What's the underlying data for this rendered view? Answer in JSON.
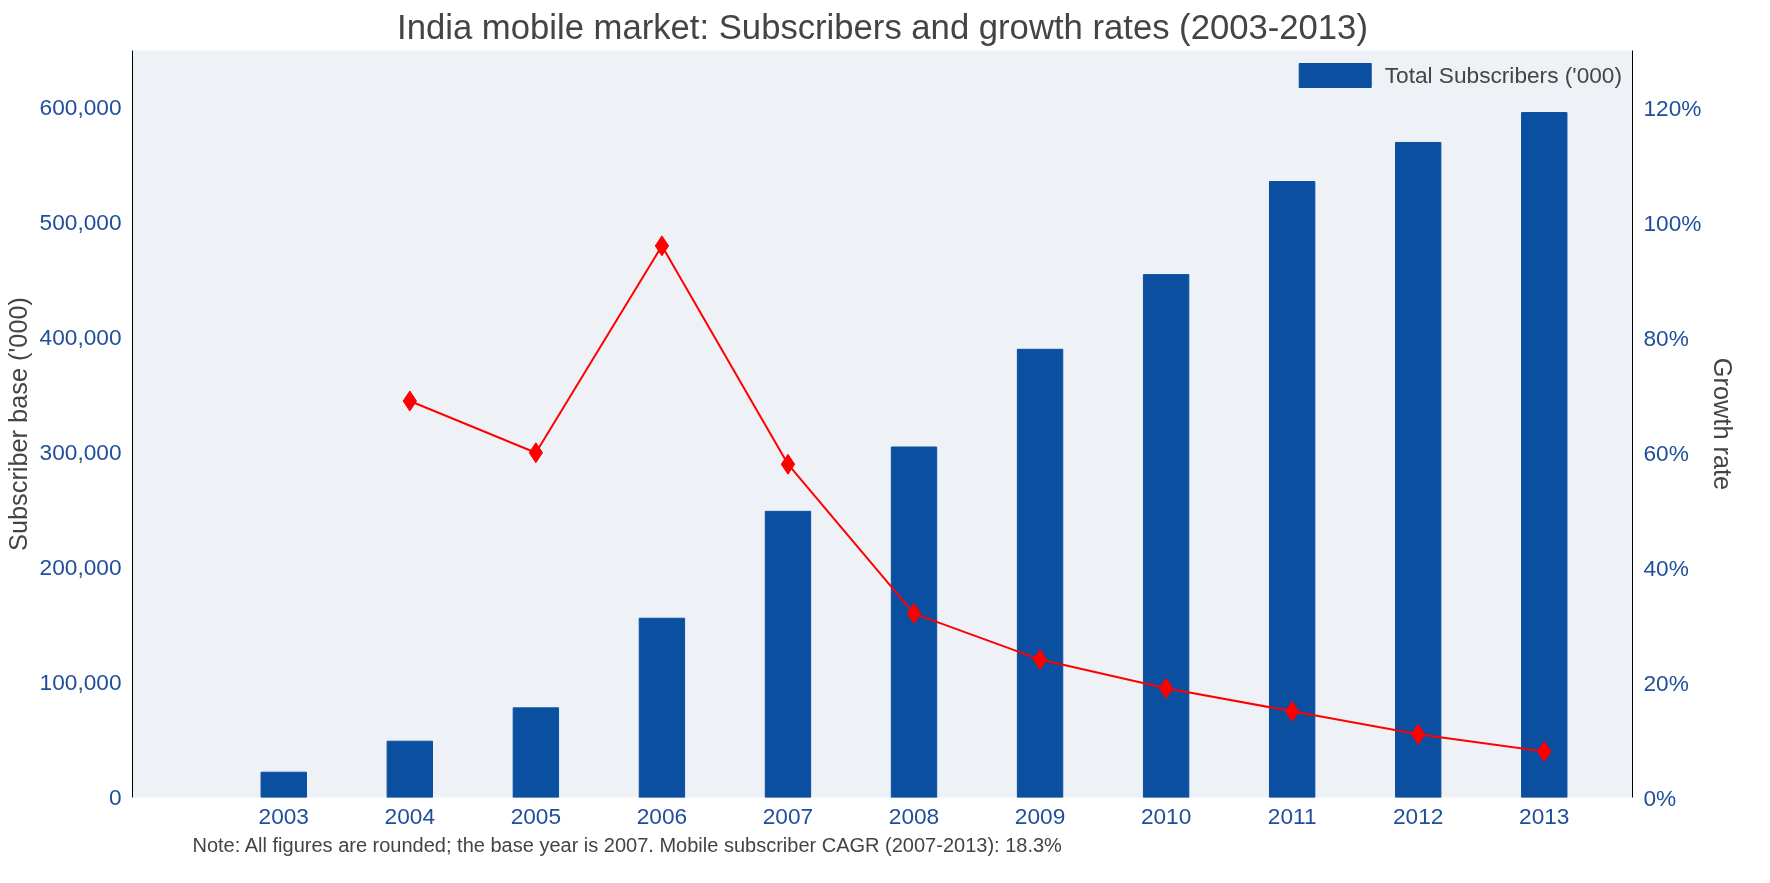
{
  "chart_data": {
    "type": "bar",
    "title": "India mobile market: Subscribers and growth rates (2003-2013)",
    "ylabel": "Subscriber base ('000)",
    "y2label": "Growth rate",
    "categories": [
      "2003",
      "2004",
      "2005",
      "2006",
      "2007",
      "2008",
      "2009",
      "2010",
      "2011",
      "2012",
      "2013"
    ],
    "series": [
      {
        "name": "Total Subscribers ('000)",
        "color": "#0a4fa0",
        "values": [
          22000,
          49000,
          78000,
          156000,
          249000,
          305000,
          390000,
          455000,
          536000,
          570000,
          596000
        ]
      },
      {
        "type": "line",
        "axis": "y2",
        "color": "#ff0000",
        "marker": "diamond",
        "values": [
          null,
          69,
          60,
          96,
          58,
          32,
          24,
          19,
          15,
          11,
          8
        ]
      }
    ],
    "ylim": [
      0,
      650000
    ],
    "yticks": [
      {
        "value": 0,
        "label": "0"
      },
      {
        "value": 100000,
        "label": "100,000"
      },
      {
        "value": 200000,
        "label": "200,000"
      },
      {
        "value": 300000,
        "label": "300,000"
      },
      {
        "value": 400000,
        "label": "400,000"
      },
      {
        "value": 500000,
        "label": "500,000"
      },
      {
        "value": 600000,
        "label": "600,000"
      }
    ],
    "y2lim": [
      0,
      130
    ],
    "y2ticks": [
      {
        "value": 0,
        "label": "0%"
      },
      {
        "value": 20,
        "label": "20%"
      },
      {
        "value": 40,
        "label": "40%"
      },
      {
        "value": 60,
        "label": "60%"
      },
      {
        "value": 80,
        "label": "80%"
      },
      {
        "value": 100,
        "label": "100%"
      },
      {
        "value": 120,
        "label": "120%"
      }
    ],
    "grid": false,
    "legend": "top right",
    "annotations": [
      "Note: All figures are rounded; the base year is 2007. Mobile subscriber CAGR (2007-2013): 18.3%"
    ]
  }
}
